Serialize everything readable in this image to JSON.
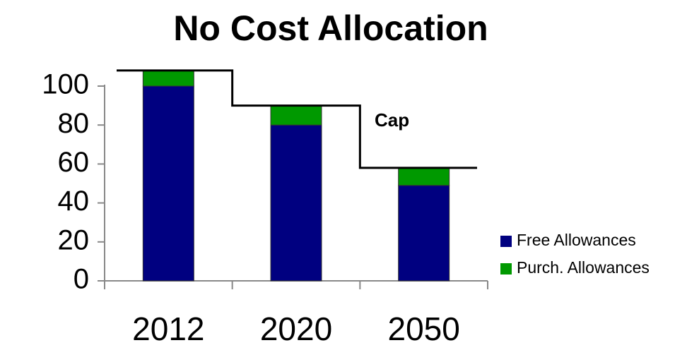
{
  "chart_data": {
    "type": "stacked_bar",
    "title": "No Cost Allocation",
    "categories": [
      "2012",
      "2020",
      "2050"
    ],
    "series": [
      {
        "name": "Free Allowances",
        "color": "#000080",
        "values": [
          100,
          80,
          49
        ]
      },
      {
        "name": "Purch. Allowances",
        "color": "#009900",
        "values": [
          8,
          10,
          9
        ]
      }
    ],
    "cap": {
      "label": "Cap",
      "values": [
        108,
        90,
        58
      ]
    },
    "ylim": [
      0,
      100
    ],
    "yticks": [
      0,
      20,
      40,
      60,
      80,
      100
    ],
    "legend": "right"
  }
}
